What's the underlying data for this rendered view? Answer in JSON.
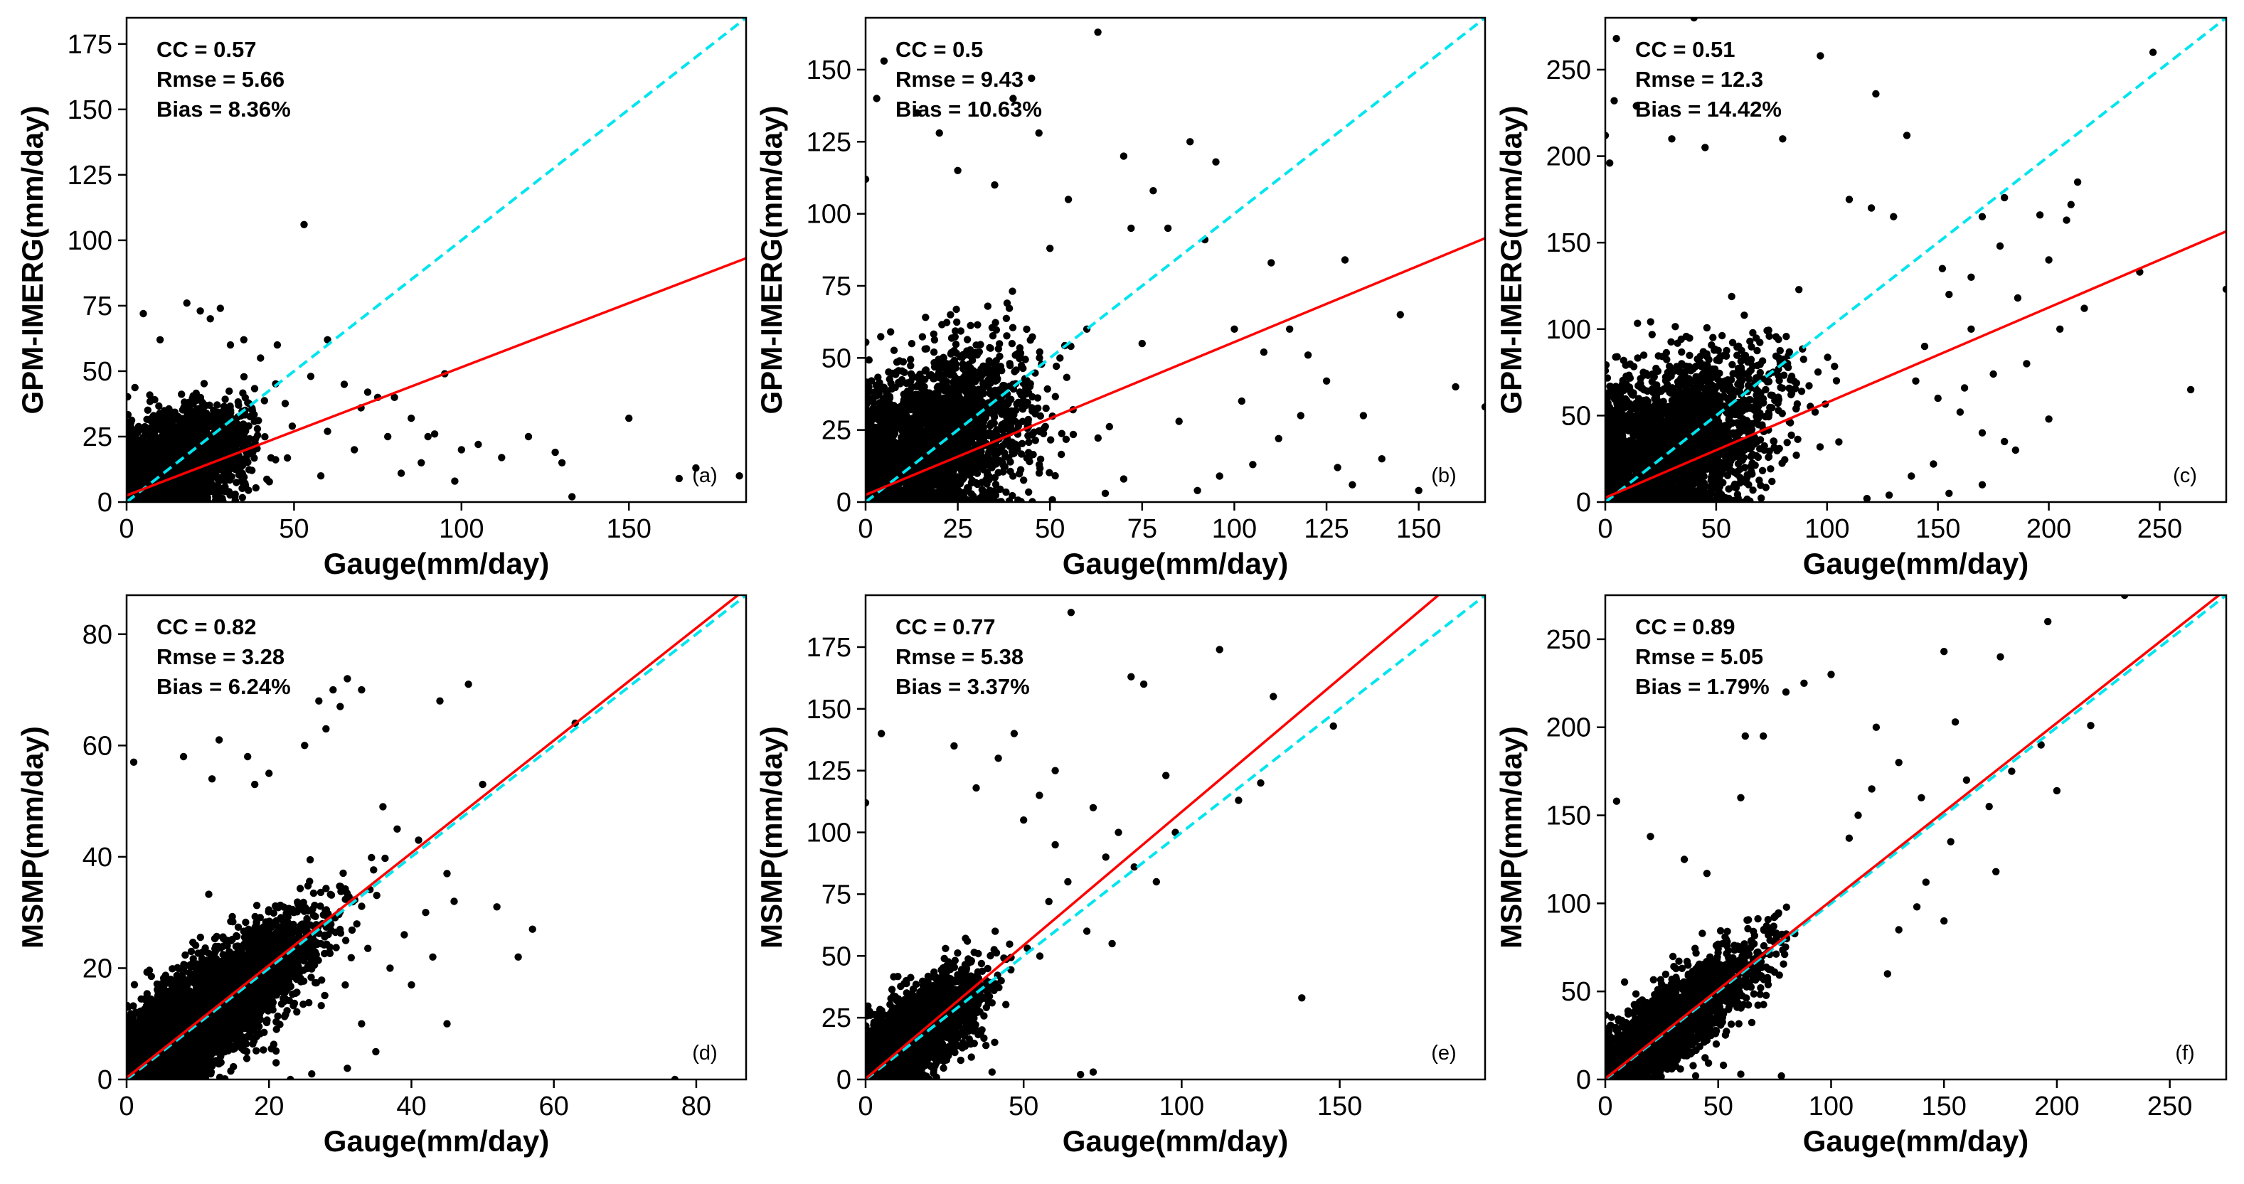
{
  "chart_data": [
    {
      "type": "scatter",
      "panel_label": "(a)",
      "xlabel": "Gauge(mm/day)",
      "ylabel": "GPM-IMERG(mm/day)",
      "xlim": [
        0,
        185
      ],
      "ylim": [
        0,
        185
      ],
      "xticks": [
        0,
        50,
        100,
        150
      ],
      "yticks": [
        0,
        25,
        50,
        75,
        100,
        125,
        150,
        175
      ],
      "stats": [
        "CC = 0.57",
        "Rmse = 5.66",
        "Bias = 8.36%"
      ],
      "fit_line": {
        "color": "#ff0000",
        "intercept": 2.5,
        "slope": 0.49
      },
      "identity_line": {
        "color": "#00e5ee",
        "style": "dashed"
      },
      "cluster": {
        "n": 2600,
        "x_mean": 13,
        "x_sd": 11,
        "y_mean": 14,
        "y_sd": 11,
        "rho": 0.45,
        "x_max": 50,
        "y_max": 58
      },
      "points": [
        [
          53,
          106
        ],
        [
          183,
          10
        ],
        [
          150,
          32
        ],
        [
          95,
          49
        ],
        [
          120,
          25
        ],
        [
          105,
          22
        ],
        [
          112,
          17
        ],
        [
          133,
          2
        ],
        [
          130,
          15
        ],
        [
          165,
          9
        ],
        [
          170,
          13
        ],
        [
          80,
          40
        ],
        [
          85,
          32
        ],
        [
          75,
          40
        ],
        [
          70,
          36
        ],
        [
          18,
          76
        ],
        [
          22,
          73
        ],
        [
          28,
          74
        ],
        [
          31,
          60
        ],
        [
          40,
          55
        ],
        [
          45,
          60
        ],
        [
          65,
          45
        ],
        [
          60,
          27
        ],
        [
          100,
          20
        ],
        [
          78,
          25
        ],
        [
          90,
          25
        ],
        [
          98,
          8
        ],
        [
          88,
          15
        ],
        [
          128,
          19
        ],
        [
          60,
          62
        ],
        [
          72,
          42
        ],
        [
          25,
          70
        ],
        [
          35,
          62
        ],
        [
          10,
          62
        ],
        [
          5,
          72
        ],
        [
          55,
          48
        ],
        [
          68,
          20
        ],
        [
          82,
          11
        ],
        [
          92,
          26
        ],
        [
          58,
          10
        ]
      ]
    },
    {
      "type": "scatter",
      "panel_label": "(b)",
      "xlabel": "Gauge(mm/day)",
      "ylabel": "GPM-IMERG(mm/day)",
      "xlim": [
        0,
        168
      ],
      "ylim": [
        0,
        168
      ],
      "xticks": [
        0,
        25,
        50,
        75,
        100,
        125,
        150
      ],
      "yticks": [
        0,
        25,
        50,
        75,
        100,
        125,
        150
      ],
      "stats": [
        "CC = 0.5",
        "Rmse = 9.43",
        "Bias = 10.63%"
      ],
      "fit_line": {
        "color": "#ff0000",
        "intercept": 2.5,
        "slope": 0.53
      },
      "identity_line": {
        "color": "#00e5ee",
        "style": "dashed"
      },
      "cluster": {
        "n": 3000,
        "x_mean": 15,
        "x_sd": 14,
        "y_mean": 18,
        "y_sd": 16,
        "rho": 0.45,
        "x_max": 85,
        "y_max": 100
      },
      "points": [
        [
          63,
          163
        ],
        [
          5,
          153
        ],
        [
          45,
          147
        ],
        [
          3,
          140
        ],
        [
          0,
          112
        ],
        [
          20,
          128
        ],
        [
          47,
          128
        ],
        [
          108,
          52
        ],
        [
          125,
          42
        ],
        [
          145,
          65
        ],
        [
          160,
          40
        ],
        [
          168,
          33
        ],
        [
          140,
          15
        ],
        [
          150,
          4
        ],
        [
          95,
          118
        ],
        [
          88,
          125
        ],
        [
          110,
          83
        ],
        [
          115,
          60
        ],
        [
          130,
          84
        ],
        [
          100,
          60
        ],
        [
          120,
          51
        ],
        [
          135,
          30
        ],
        [
          78,
          108
        ],
        [
          70,
          120
        ],
        [
          55,
          105
        ],
        [
          35,
          110
        ],
        [
          40,
          140
        ],
        [
          14,
          135
        ],
        [
          25,
          115
        ],
        [
          82,
          95
        ],
        [
          92,
          91
        ],
        [
          102,
          35
        ],
        [
          118,
          30
        ],
        [
          112,
          22
        ],
        [
          105,
          13
        ],
        [
          96,
          9
        ],
        [
          90,
          4
        ],
        [
          128,
          12
        ],
        [
          132,
          6
        ],
        [
          85,
          28
        ],
        [
          75,
          55
        ],
        [
          70,
          8
        ],
        [
          65,
          3
        ],
        [
          60,
          60
        ],
        [
          72,
          95
        ],
        [
          50,
          88
        ]
      ]
    },
    {
      "type": "scatter",
      "panel_label": "(c)",
      "xlabel": "Gauge(mm/day)",
      "ylabel": "GPM-IMERG(mm/day)",
      "xlim": [
        0,
        280
      ],
      "ylim": [
        0,
        280
      ],
      "xticks": [
        0,
        50,
        100,
        150,
        200,
        250
      ],
      "yticks": [
        0,
        50,
        100,
        150,
        200,
        250
      ],
      "stats": [
        "CC = 0.51",
        "Rmse = 12.3",
        "Bias = 14.42%"
      ],
      "fit_line": {
        "color": "#ff0000",
        "intercept": 2.5,
        "slope": 0.55
      },
      "identity_line": {
        "color": "#00e5ee",
        "style": "dashed"
      },
      "cluster": {
        "n": 3000,
        "x_mean": 26,
        "x_sd": 24,
        "y_mean": 30,
        "y_sd": 27,
        "rho": 0.45,
        "x_max": 140,
        "y_max": 160
      },
      "points": [
        [
          40,
          280
        ],
        [
          5,
          268
        ],
        [
          247,
          260
        ],
        [
          97,
          258
        ],
        [
          4,
          232
        ],
        [
          122,
          236
        ],
        [
          14,
          229
        ],
        [
          136,
          212
        ],
        [
          80,
          210
        ],
        [
          30,
          210
        ],
        [
          0,
          212
        ],
        [
          2,
          196
        ],
        [
          45,
          205
        ],
        [
          213,
          185
        ],
        [
          210,
          172
        ],
        [
          208,
          163
        ],
        [
          196,
          166
        ],
        [
          205,
          100
        ],
        [
          216,
          112
        ],
        [
          241,
          133
        ],
        [
          264,
          65
        ],
        [
          280,
          123
        ],
        [
          190,
          80
        ],
        [
          180,
          35
        ],
        [
          170,
          40
        ],
        [
          160,
          52
        ],
        [
          150,
          60
        ],
        [
          140,
          70
        ],
        [
          165,
          100
        ],
        [
          178,
          148
        ],
        [
          180,
          176
        ],
        [
          170,
          165
        ],
        [
          165,
          130
        ],
        [
          155,
          120
        ],
        [
          130,
          165
        ],
        [
          120,
          170
        ],
        [
          110,
          175
        ],
        [
          200,
          140
        ],
        [
          186,
          118
        ],
        [
          144,
          90
        ],
        [
          152,
          135
        ],
        [
          175,
          74
        ],
        [
          162,
          66
        ],
        [
          200,
          48
        ],
        [
          185,
          30
        ],
        [
          148,
          22
        ],
        [
          138,
          15
        ],
        [
          170,
          10
        ],
        [
          155,
          5
        ],
        [
          128,
          4
        ],
        [
          118,
          2
        ]
      ]
    },
    {
      "type": "scatter",
      "panel_label": "(d)",
      "xlabel": "Gauge(mm/day)",
      "ylabel": "MSMP(mm/day)",
      "xlim": [
        0,
        87
      ],
      "ylim": [
        0,
        87
      ],
      "xticks": [
        0,
        20,
        40,
        60,
        80
      ],
      "yticks": [
        0,
        20,
        40,
        60,
        80
      ],
      "stats": [
        "CC = 0.82",
        "Rmse = 3.28",
        "Bias = 6.24%"
      ],
      "fit_line": {
        "color": "#ff0000",
        "intercept": 0.3,
        "slope": 1.01
      },
      "identity_line": {
        "color": "#00e5ee",
        "style": "dashed"
      },
      "cluster": {
        "n": 5500,
        "x_mean": 10,
        "x_sd": 7.5,
        "y_mean": 11,
        "y_sd": 8,
        "rho": 0.82,
        "x_max": 42,
        "y_max": 50
      },
      "points": [
        [
          77,
          0
        ],
        [
          63,
          64
        ],
        [
          57,
          27
        ],
        [
          55,
          22
        ],
        [
          52,
          31
        ],
        [
          50,
          53
        ],
        [
          46,
          32
        ],
        [
          45,
          10
        ],
        [
          44,
          68
        ],
        [
          43,
          22
        ],
        [
          48,
          71
        ],
        [
          37,
          20
        ],
        [
          40,
          17
        ],
        [
          33,
          70
        ],
        [
          31,
          72
        ],
        [
          28,
          63
        ],
        [
          29,
          70
        ],
        [
          27,
          68
        ],
        [
          24,
          18
        ],
        [
          30,
          67
        ],
        [
          20,
          55
        ],
        [
          25,
          60
        ],
        [
          18,
          53
        ],
        [
          12,
          54
        ],
        [
          13,
          61
        ],
        [
          8,
          58
        ],
        [
          1,
          57
        ],
        [
          17,
          58
        ],
        [
          36,
          49
        ],
        [
          38,
          45
        ],
        [
          41,
          43
        ],
        [
          45,
          37
        ],
        [
          39,
          26
        ],
        [
          42,
          30
        ],
        [
          35,
          5
        ],
        [
          33,
          10
        ],
        [
          31,
          2
        ],
        [
          26,
          1
        ],
        [
          23,
          0
        ],
        [
          21,
          3
        ]
      ]
    },
    {
      "type": "scatter",
      "panel_label": "(e)",
      "xlabel": "Gauge(mm/day)",
      "ylabel": "MSMP(mm/day)",
      "xlim": [
        0,
        196
      ],
      "ylim": [
        0,
        196
      ],
      "xticks": [
        0,
        50,
        100,
        150
      ],
      "yticks": [
        0,
        25,
        50,
        75,
        100,
        125,
        150,
        175
      ],
      "stats": [
        "CC = 0.77",
        "Rmse = 5.38",
        "Bias = 3.37%"
      ],
      "fit_line": {
        "color": "#ff0000",
        "intercept": 0.3,
        "slope": 1.08
      },
      "identity_line": {
        "color": "#00e5ee",
        "style": "dashed"
      },
      "cluster": {
        "n": 2600,
        "x_mean": 14,
        "x_sd": 11,
        "y_mean": 16,
        "y_sd": 13,
        "rho": 0.75,
        "x_max": 65,
        "y_max": 80
      },
      "points": [
        [
          65,
          189
        ],
        [
          112,
          174
        ],
        [
          84,
          163
        ],
        [
          88,
          160
        ],
        [
          129,
          155
        ],
        [
          148,
          143
        ],
        [
          5,
          140
        ],
        [
          28,
          135
        ],
        [
          0,
          112
        ],
        [
          42,
          130
        ],
        [
          60,
          125
        ],
        [
          95,
          123
        ],
        [
          138,
          33
        ],
        [
          125,
          120
        ],
        [
          118,
          113
        ],
        [
          72,
          110
        ],
        [
          80,
          100
        ],
        [
          76,
          90
        ],
        [
          92,
          80
        ],
        [
          98,
          100
        ],
        [
          85,
          86
        ],
        [
          68,
          2
        ],
        [
          72,
          3
        ],
        [
          10,
          2
        ],
        [
          40,
          3
        ],
        [
          55,
          115
        ],
        [
          47,
          140
        ],
        [
          35,
          118
        ],
        [
          50,
          105
        ],
        [
          64,
          80
        ],
        [
          60,
          95
        ],
        [
          58,
          72
        ],
        [
          70,
          60
        ],
        [
          78,
          55
        ]
      ]
    },
    {
      "type": "scatter",
      "panel_label": "(f)",
      "xlabel": "Gauge(mm/day)",
      "ylabel": "MSMP(mm/day)",
      "xlim": [
        0,
        275
      ],
      "ylim": [
        0,
        275
      ],
      "xticks": [
        0,
        50,
        100,
        150,
        200,
        250
      ],
      "yticks": [
        0,
        50,
        100,
        150,
        200,
        250
      ],
      "stats": [
        "CC = 0.89",
        "Rmse = 5.05",
        "Bias = 1.79%"
      ],
      "fit_line": {
        "color": "#ff0000",
        "intercept": 0.5,
        "slope": 1.01
      },
      "identity_line": {
        "color": "#00e5ee",
        "style": "dashed"
      },
      "cluster": {
        "n": 2600,
        "x_mean": 26,
        "x_sd": 20,
        "y_mean": 28,
        "y_sd": 22,
        "rho": 0.85,
        "x_max": 110,
        "y_max": 130
      },
      "points": [
        [
          230,
          275
        ],
        [
          196,
          260
        ],
        [
          150,
          243
        ],
        [
          175,
          240
        ],
        [
          100,
          230
        ],
        [
          88,
          225
        ],
        [
          80,
          220
        ],
        [
          120,
          200
        ],
        [
          155,
          203
        ],
        [
          200,
          164
        ],
        [
          215,
          201
        ],
        [
          193,
          190
        ],
        [
          173,
          118
        ],
        [
          180,
          175
        ],
        [
          160,
          170
        ],
        [
          170,
          155
        ],
        [
          153,
          135
        ],
        [
          150,
          90
        ],
        [
          140,
          160
        ],
        [
          130,
          180
        ],
        [
          118,
          165
        ],
        [
          112,
          150
        ],
        [
          108,
          137
        ],
        [
          5,
          158
        ],
        [
          20,
          138
        ],
        [
          35,
          125
        ],
        [
          45,
          117
        ],
        [
          60,
          160
        ],
        [
          62,
          195
        ],
        [
          70,
          195
        ],
        [
          142,
          112
        ],
        [
          138,
          98
        ],
        [
          130,
          85
        ],
        [
          125,
          60
        ],
        [
          78,
          2
        ],
        [
          60,
          3
        ],
        [
          40,
          2
        ]
      ]
    }
  ]
}
